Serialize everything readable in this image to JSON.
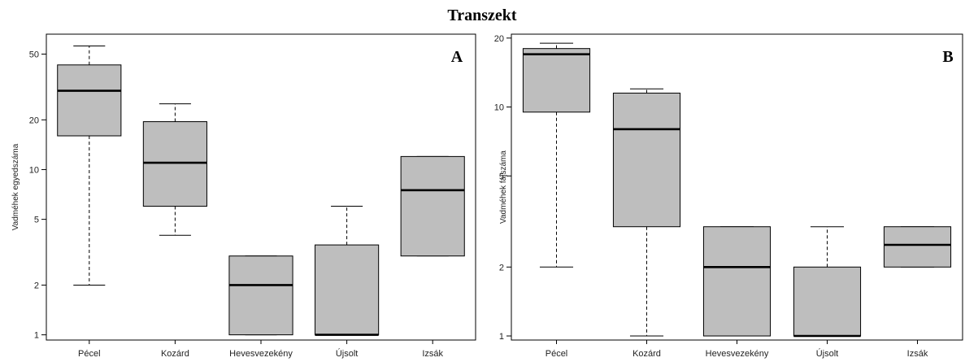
{
  "figure": {
    "title": "Transzekt"
  },
  "chart_data": [
    {
      "type": "boxplot",
      "panel_label": "A",
      "ylabel": "Vadméhek egyedszáma",
      "xlabel": "",
      "yscale": "log",
      "ylim": [
        0.93,
        66
      ],
      "yticks": [
        1,
        2,
        5,
        10,
        20,
        50
      ],
      "box_color": "#bebebe",
      "categories": [
        "Pécel",
        "Kozárd",
        "Hevesvezekény",
        "Újsolt",
        "Izsák"
      ],
      "boxes": [
        {
          "category": "Pécel",
          "whisker_low": 2,
          "q1": 16,
          "median": 30,
          "q3": 43,
          "whisker_high": 56
        },
        {
          "category": "Kozárd",
          "whisker_low": 4,
          "q1": 6,
          "median": 11,
          "q3": 19.5,
          "whisker_high": 25
        },
        {
          "category": "Hevesvezekény",
          "whisker_low": 1,
          "q1": 1,
          "median": 2,
          "q3": 3,
          "whisker_high": 3
        },
        {
          "category": "Újsolt",
          "whisker_low": 1,
          "q1": 1,
          "median": 1,
          "q3": 3.5,
          "whisker_high": 6
        },
        {
          "category": "Izsák",
          "whisker_low": 3,
          "q1": 3,
          "median": 7.5,
          "q3": 12,
          "whisker_high": 12
        }
      ]
    },
    {
      "type": "boxplot",
      "panel_label": "B",
      "ylabel": "Vadméhek fajszáma",
      "xlabel": "",
      "yscale": "log",
      "ylim": [
        0.96,
        20.8
      ],
      "yticks": [
        1,
        2,
        5,
        10,
        20
      ],
      "box_color": "#bebebe",
      "categories": [
        "Pécel",
        "Kozárd",
        "Hevesvezekény",
        "Újsolt",
        "Izsák"
      ],
      "boxes": [
        {
          "category": "Pécel",
          "whisker_low": 2,
          "q1": 9.5,
          "median": 17,
          "q3": 18,
          "whisker_high": 19
        },
        {
          "category": "Kozárd",
          "whisker_low": 1,
          "q1": 3,
          "median": 8,
          "q3": 11.5,
          "whisker_high": 12
        },
        {
          "category": "Hevesvezekény",
          "whisker_low": 1,
          "q1": 1,
          "median": 2,
          "q3": 3,
          "whisker_high": 3
        },
        {
          "category": "Újsolt",
          "whisker_low": 1,
          "q1": 1,
          "median": 1,
          "q3": 2,
          "whisker_high": 3
        },
        {
          "category": "Izsák",
          "whisker_low": 2,
          "q1": 2,
          "median": 2.5,
          "q3": 3,
          "whisker_high": 3
        }
      ]
    }
  ]
}
